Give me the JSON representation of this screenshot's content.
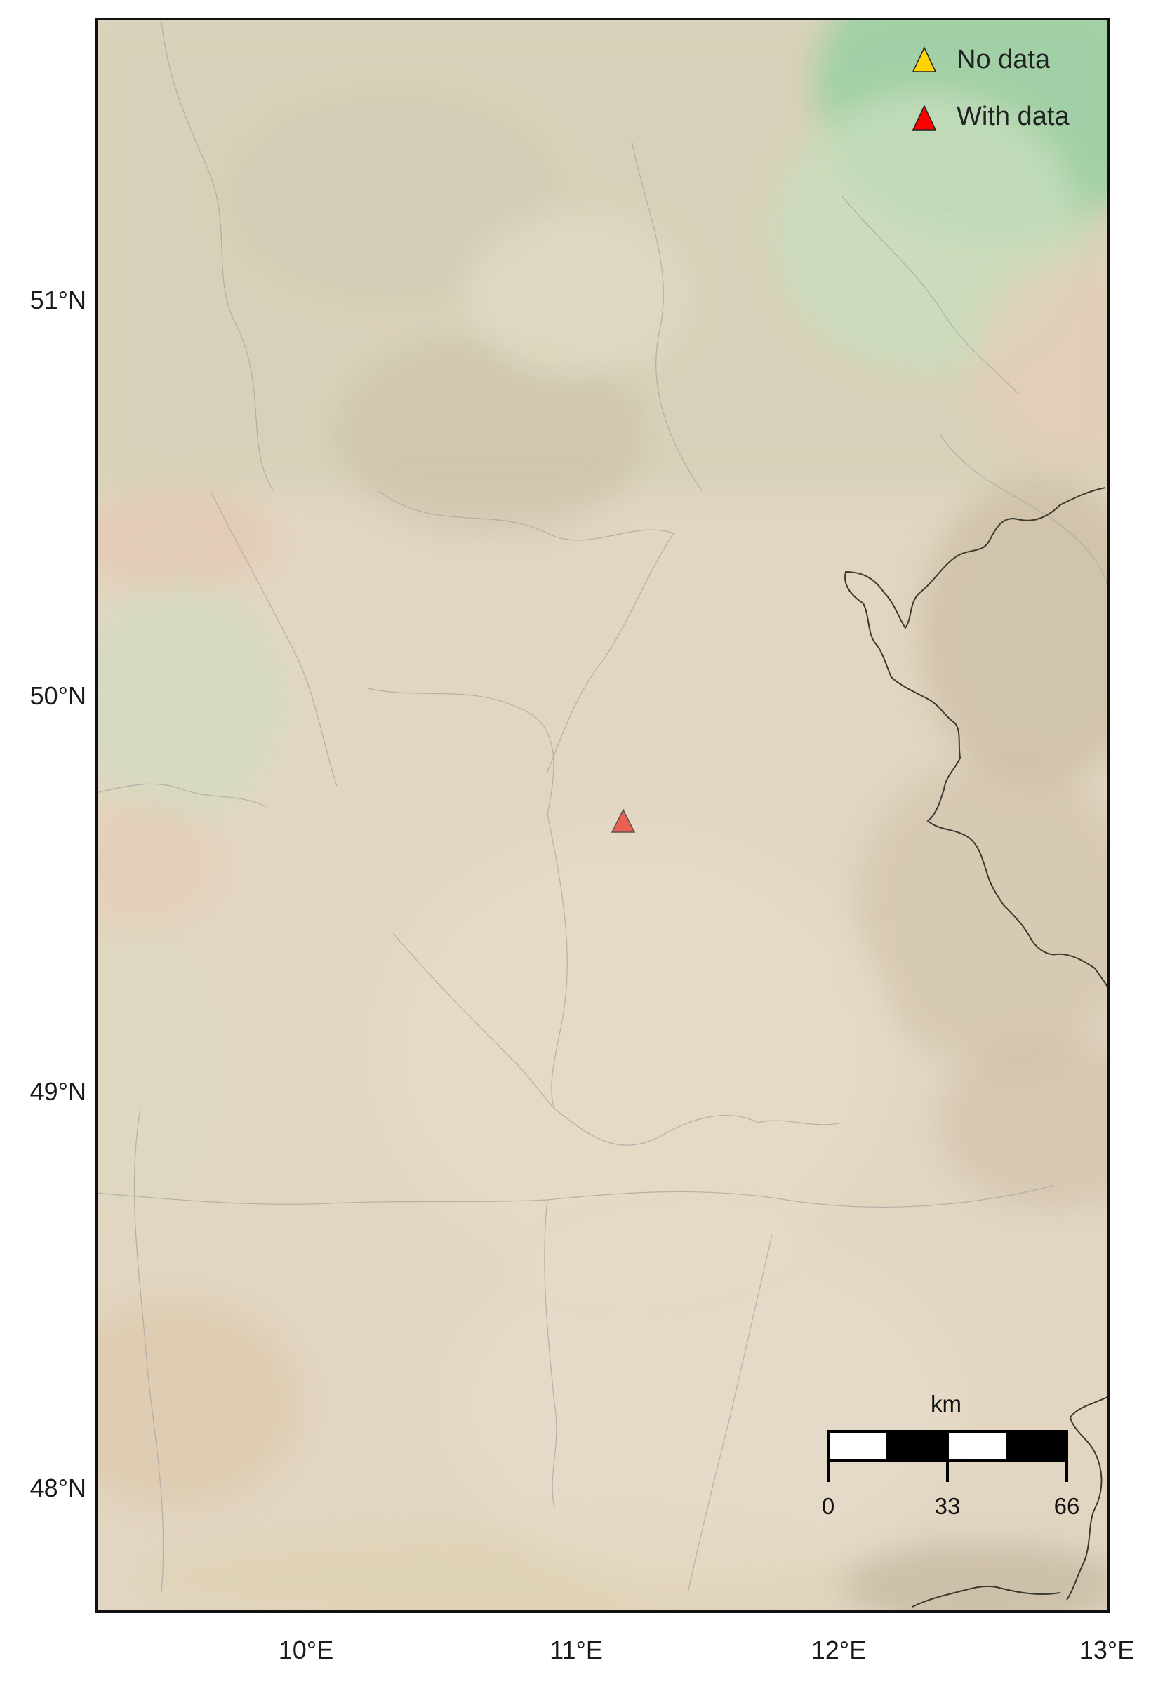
{
  "map": {
    "lat_labels": [
      "51°N",
      "50°N",
      "49°N",
      "48°N"
    ],
    "lon_labels": [
      "10°E",
      "11°E",
      "12°E",
      "13°E"
    ],
    "lat_values": [
      51,
      50,
      49,
      48
    ],
    "lon_values": [
      10,
      11,
      12,
      13
    ],
    "extent": {
      "lon_min": 9.25,
      "lon_max": 13.0,
      "lat_min": 47.7,
      "lat_max": 51.71
    },
    "colors": {
      "terrain_base": "#e2d6c2",
      "lowland_green": "#a7d3a8",
      "highland": "#cfc0a6",
      "border": "#333333",
      "marker_with_data": "#e8604f",
      "legend_no_data": "#ffd400",
      "legend_with_data": "#ff0000"
    }
  },
  "legend": {
    "items": [
      {
        "label": "No data",
        "color": "#ffd400"
      },
      {
        "label": "With data",
        "color": "#ff0000"
      }
    ]
  },
  "scalebar": {
    "unit": "km",
    "ticks": [
      "0",
      "33",
      "66"
    ]
  },
  "stations": [
    {
      "lon": 11.19,
      "lat": 49.67,
      "status": "With data"
    }
  ]
}
